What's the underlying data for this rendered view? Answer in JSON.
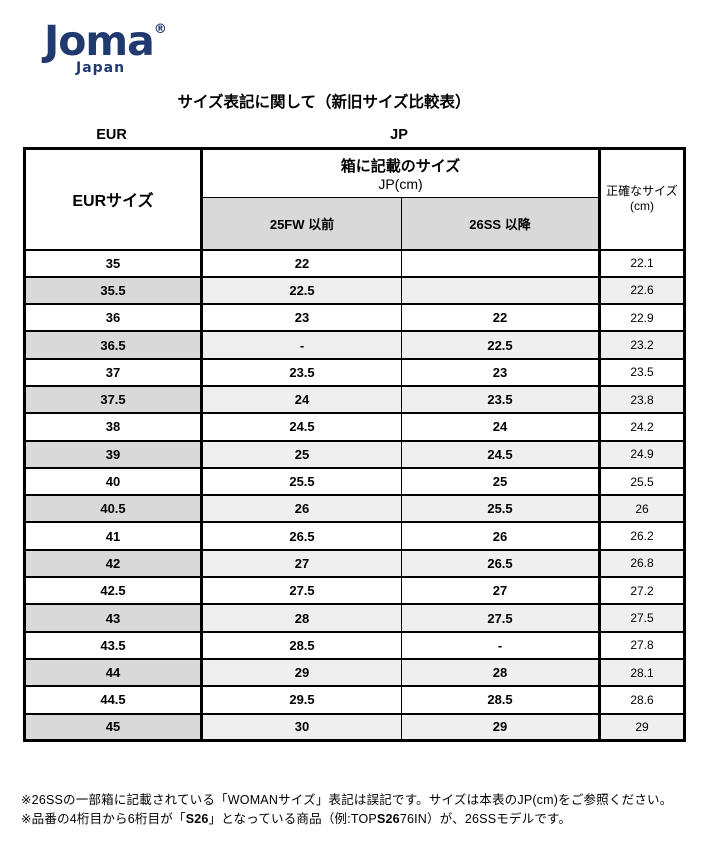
{
  "logo": {
    "brand": "Joma",
    "registered": "®",
    "sub": "Japan"
  },
  "title": "サイズ表記に関して（新旧サイズ比較表）",
  "group_labels": {
    "eur": "EUR",
    "jp": "JP"
  },
  "table": {
    "header": {
      "eur_size": "EURサイズ",
      "box_size_line1": "箱に記載のサイズ",
      "box_size_line2": "JP(cm)",
      "col_25fw": "25FW 以前",
      "col_26ss": "26SS 以降",
      "accurate_line1": "正確なサイズ",
      "accurate_line2": "(cm)"
    },
    "rows": [
      {
        "eur": "35",
        "fw25": "22",
        "ss26": "",
        "accurate": "22.1"
      },
      {
        "eur": "35.5",
        "fw25": "22.5",
        "ss26": "",
        "accurate": "22.6"
      },
      {
        "eur": "36",
        "fw25": "23",
        "ss26": "22",
        "accurate": "22.9"
      },
      {
        "eur": "36.5",
        "fw25": "-",
        "ss26": "22.5",
        "accurate": "23.2"
      },
      {
        "eur": "37",
        "fw25": "23.5",
        "ss26": "23",
        "accurate": "23.5"
      },
      {
        "eur": "37.5",
        "fw25": "24",
        "ss26": "23.5",
        "accurate": "23.8"
      },
      {
        "eur": "38",
        "fw25": "24.5",
        "ss26": "24",
        "accurate": "24.2"
      },
      {
        "eur": "39",
        "fw25": "25",
        "ss26": "24.5",
        "accurate": "24.9"
      },
      {
        "eur": "40",
        "fw25": "25.5",
        "ss26": "25",
        "accurate": "25.5"
      },
      {
        "eur": "40.5",
        "fw25": "26",
        "ss26": "25.5",
        "accurate": "26"
      },
      {
        "eur": "41",
        "fw25": "26.5",
        "ss26": "26",
        "accurate": "26.2"
      },
      {
        "eur": "42",
        "fw25": "27",
        "ss26": "26.5",
        "accurate": "26.8"
      },
      {
        "eur": "42.5",
        "fw25": "27.5",
        "ss26": "27",
        "accurate": "27.2"
      },
      {
        "eur": "43",
        "fw25": "28",
        "ss26": "27.5",
        "accurate": "27.5"
      },
      {
        "eur": "43.5",
        "fw25": "28.5",
        "ss26": "-",
        "accurate": "27.8"
      },
      {
        "eur": "44",
        "fw25": "29",
        "ss26": "28",
        "accurate": "28.1"
      },
      {
        "eur": "44.5",
        "fw25": "29.5",
        "ss26": "28.5",
        "accurate": "28.6"
      },
      {
        "eur": "45",
        "fw25": "30",
        "ss26": "29",
        "accurate": "29"
      }
    ]
  },
  "footnotes": {
    "line1": "※26SSの一部箱に記載されている「WOMANサイズ」表記は誤記です。サイズは本表のJP(cm)をご参照ください。",
    "line2_segments": [
      {
        "text": "※品番の4桁目から6桁目が「",
        "bold": false
      },
      {
        "text": "S26",
        "bold": true
      },
      {
        "text": "」となっている商品（例:TOP",
        "bold": false
      },
      {
        "text": "S26",
        "bold": true
      },
      {
        "text": "76IN）が、26SSモデルです。",
        "bold": false
      }
    ]
  },
  "colors": {
    "brand_navy": "#20396f",
    "header_gray": "#d9d9d9",
    "row_gray_left": "#d9d9d9",
    "row_gray_light": "#efefef",
    "border_black": "#000000"
  }
}
